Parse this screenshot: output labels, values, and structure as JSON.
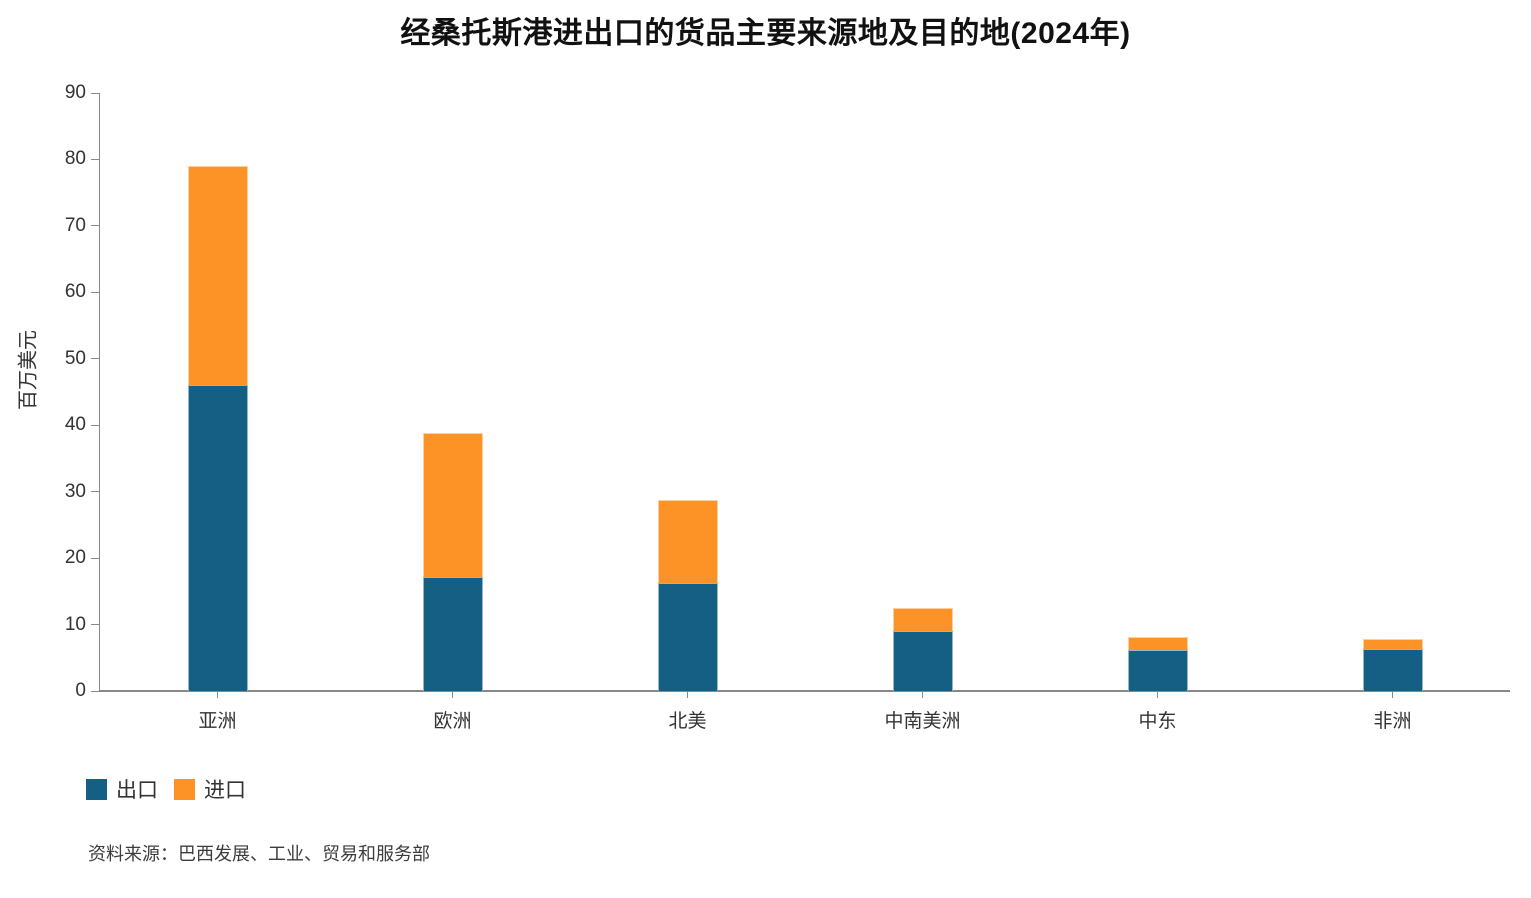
{
  "title": "经桑托斯港进出口的货品主要来源地及目的地(2024年)",
  "source_note": "资料来源：巴西发展、工业、贸易和服务部",
  "chart_data": {
    "type": "bar",
    "stacked": true,
    "title": "经桑托斯港进出口的货品主要来源地及目的地(2024年)",
    "categories": [
      "亚洲",
      "欧洲",
      "北美",
      "中南美洲",
      "中东",
      "非洲"
    ],
    "series": [
      {
        "name": "出口",
        "color": "#155F84",
        "values": [
          46,
          17.1,
          16.3,
          9,
          6.2,
          6.3
        ]
      },
      {
        "name": "进口",
        "color": "#FD9327",
        "values": [
          33,
          21.7,
          12.5,
          3.5,
          1.9,
          1.5
        ]
      }
    ],
    "stack_totals": [
      79,
      38.8,
      28.8,
      12.5,
      8.1,
      7.8
    ],
    "xlabel": "",
    "ylabel": "百万美元",
    "ylim": [
      0,
      90
    ],
    "ytick_step": 10,
    "yticks": [
      0,
      10,
      20,
      30,
      40,
      50,
      60,
      70,
      80,
      90
    ],
    "grid": false,
    "legend_position": "bottom-left",
    "axis_color": "#888888",
    "text_color": "#333333"
  }
}
